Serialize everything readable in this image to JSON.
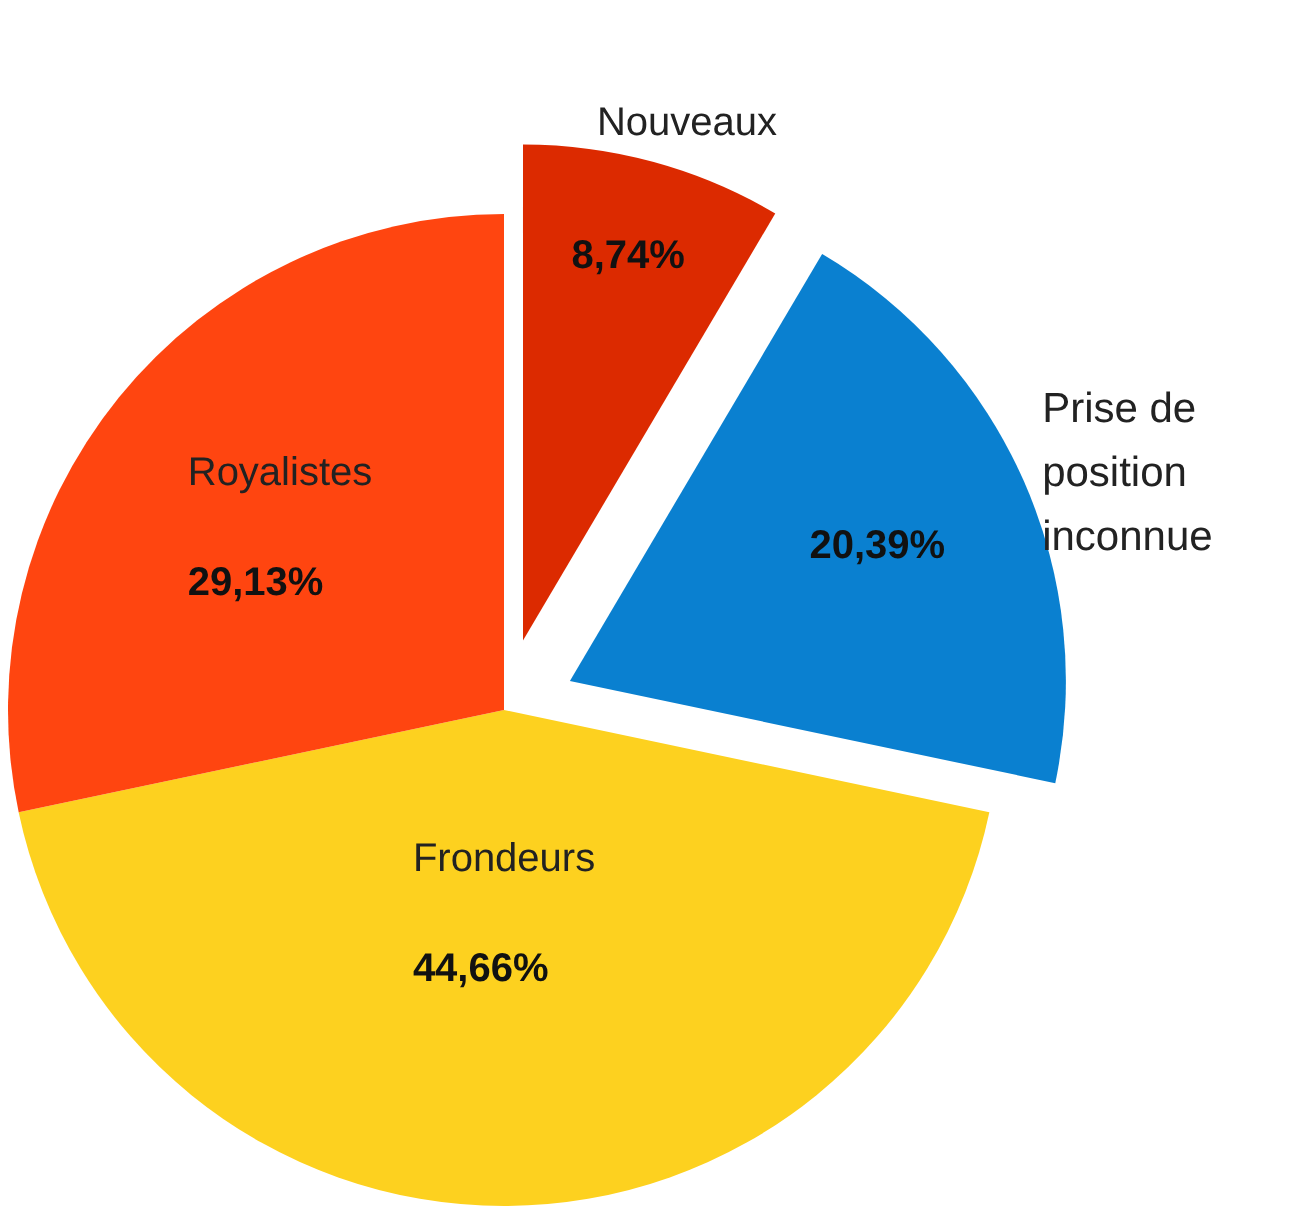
{
  "chart_data": {
    "type": "pie",
    "categories": [
      "Nouveaux",
      "Prise de position inconnue",
      "Frondeurs",
      "Royalistes"
    ],
    "values": [
      8.74,
      20.39,
      44.66,
      29.13
    ],
    "colors": [
      "#dc2a00",
      "#0a80d0",
      "#fdd11f",
      "#ff4510"
    ],
    "value_labels": [
      "8,74%",
      "20,39%",
      "44,66%",
      "29,13%"
    ]
  }
}
